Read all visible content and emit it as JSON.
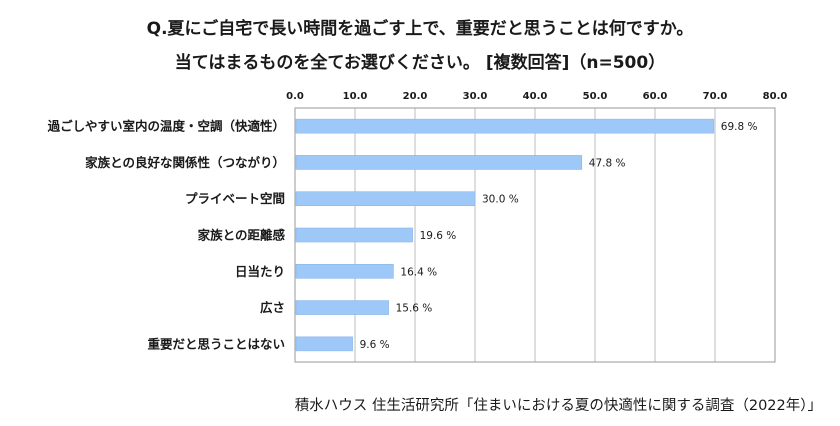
{
  "chart_data": {
    "type": "bar",
    "orientation": "horizontal",
    "title_lines": [
      "Q.夏にご自宅で長い時間を過ごす上で、重要だと思うことは何ですか。",
      "当てはまるものを全てお選びください。 [複数回答]（n=500）"
    ],
    "categories": [
      "過ごしやすい室内の温度・空調（快適性）",
      "家族との良好な関係性（つながり）",
      "プライベート空間",
      "家族との距離感",
      "日当たり",
      "広さ",
      "重要だと思うことはない"
    ],
    "values": [
      69.8,
      47.8,
      30.0,
      19.6,
      16.4,
      15.6,
      9.6
    ],
    "value_labels": [
      "69.8 %",
      "47.8 %",
      "30.0 %",
      "19.6 %",
      "16.4 %",
      "15.6 %",
      "9.6 %"
    ],
    "xlim": [
      0,
      80
    ],
    "xticks": [
      "0.0",
      "10.0",
      "20.0",
      "30.0",
      "40.0",
      "50.0",
      "60.0",
      "70.0",
      "80.0"
    ],
    "x_axis_position": "top",
    "grid": true,
    "bar_color": "#9dc8f7",
    "bar_edge_color": "#8ab6e8",
    "grid_color": "#bdbdbd",
    "source": "積水ハウス 住生活研究所「住まいにおける夏の快適性に関する調査（2022年）」"
  }
}
